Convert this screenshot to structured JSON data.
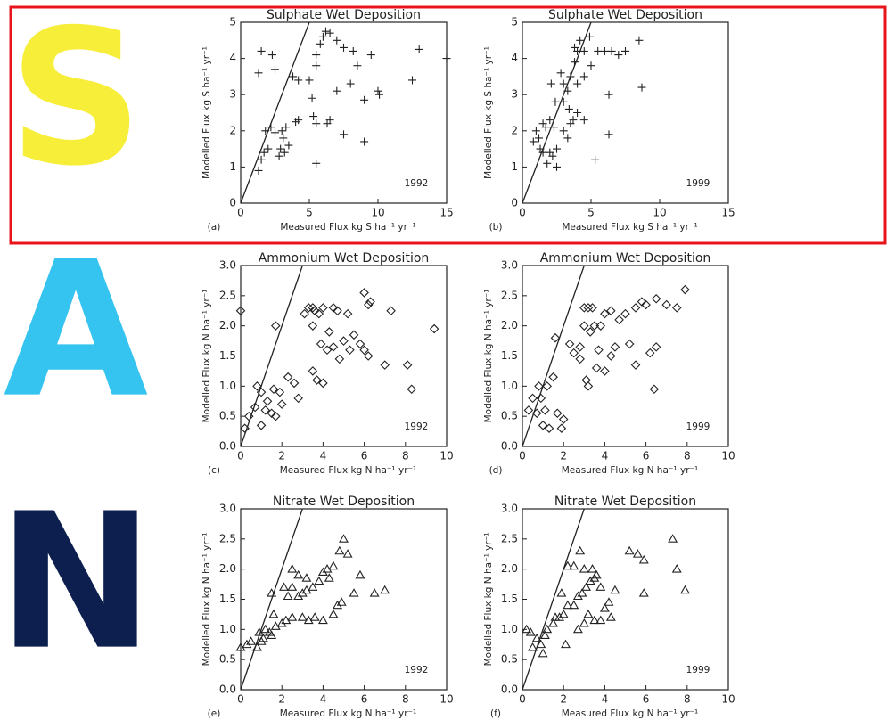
{
  "chart_data": [
    {
      "type": "scatter",
      "title": "Sulphate Wet Deposition",
      "x_label": "Measured Flux kg S ha⁻¹ yr⁻¹",
      "y_label": "Modelled Flux kg S ha⁻¹ yr⁻¹",
      "panel_label": "(a)",
      "annotation": "1992",
      "xlim": [
        0,
        15
      ],
      "ylim": [
        0,
        5
      ],
      "xticks": [
        0,
        5,
        10,
        15
      ],
      "yticks": [
        0,
        1,
        2,
        3,
        4,
        5
      ],
      "series": [
        {
          "name": "1992",
          "marker": "plus",
          "color": "#222222",
          "x": [
            1.5,
            2.3,
            2.5,
            1.3,
            3.8,
            4.2,
            5,
            5.2,
            5.5,
            5.5,
            5.8,
            6,
            6.2,
            6.5,
            7,
            7.5,
            8.2,
            8.5,
            9.5,
            8,
            7,
            10,
            10.1,
            12.5,
            13,
            15,
            9,
            9,
            7.5,
            6.5,
            6.3,
            5.5,
            5.3,
            4.2,
            4,
            3.3,
            3,
            2.5,
            2.2,
            1.8,
            2,
            1.7,
            1.5,
            1.3,
            2.8,
            3.2,
            3.5,
            5.5,
            3.1,
            2.9
          ],
          "values": [
            4.2,
            4.1,
            3.7,
            3.6,
            3.5,
            3.4,
            3.4,
            2.9,
            3.8,
            4.1,
            4.4,
            4.6,
            4.75,
            4.7,
            4.5,
            4.3,
            4.2,
            3.8,
            4.1,
            3.3,
            3.1,
            3.1,
            3.0,
            3.4,
            4.25,
            4.0,
            2.85,
            1.7,
            1.9,
            2.3,
            2.2,
            2.2,
            2.4,
            2.3,
            2.25,
            2.1,
            2.0,
            1.95,
            2.1,
            2.0,
            1.5,
            1.4,
            1.2,
            0.9,
            1.3,
            1.4,
            1.6,
            1.1,
            1.8,
            1.5
          ]
        }
      ]
    },
    {
      "type": "scatter",
      "title": "Sulphate Wet Deposition",
      "x_label": "Measured Flux kg S ha⁻¹ yr⁻¹",
      "y_label": "Modelled Flux kg S ha⁻¹ yr⁻¹",
      "panel_label": "(b)",
      "annotation": "1999",
      "xlim": [
        0,
        15
      ],
      "ylim": [
        0,
        5
      ],
      "xticks": [
        0,
        5,
        10,
        15
      ],
      "yticks": [
        0,
        1,
        2,
        3,
        4,
        5
      ],
      "series": [
        {
          "name": "1999",
          "marker": "plus",
          "color": "#222222",
          "x": [
            1,
            1.2,
            0.8,
            1.5,
            2,
            1.7,
            1.3,
            1.5,
            1.8,
            2.2,
            2.5,
            2,
            2.5,
            2.3,
            3,
            3.3,
            3.5,
            3.7,
            3.4,
            4,
            4.5,
            3,
            3.3,
            3.5,
            3.8,
            4,
            4.2,
            4.5,
            3.8,
            4,
            4.5,
            5,
            5.5,
            6,
            6.5,
            7,
            7.5,
            8.5,
            8.7,
            6.3,
            6.3,
            5.3,
            4.9,
            2.1,
            2.8,
            2.4,
            3.0
          ],
          "values": [
            2.0,
            1.8,
            1.7,
            2.2,
            2.3,
            2.1,
            1.5,
            1.4,
            1.1,
            1.3,
            1.0,
            1.4,
            1.5,
            2.1,
            2.0,
            1.8,
            2.2,
            2.3,
            2.6,
            2.5,
            2.3,
            2.8,
            3.1,
            3.5,
            3.9,
            4.2,
            4.5,
            4.2,
            4.3,
            3.3,
            3.5,
            3.8,
            4.2,
            4.2,
            4.2,
            4.1,
            4.2,
            4.5,
            3.2,
            3.0,
            1.9,
            1.2,
            4.6,
            3.3,
            3.6,
            2.8,
            3.3
          ]
        }
      ]
    },
    {
      "type": "scatter",
      "title": "Ammonium Wet Deposition",
      "x_label": "Measured Flux kg N ha⁻¹ yr⁻¹",
      "y_label": "Modelled Flux kg N ha⁻¹ yr⁻¹",
      "panel_label": "(c)",
      "annotation": "1992",
      "xlim": [
        0,
        10
      ],
      "ylim": [
        0,
        3
      ],
      "xticks": [
        0,
        2,
        4,
        6,
        8,
        10
      ],
      "yticks": [
        {
          "value": 0,
          "label": "0.0"
        },
        0.5,
        {
          "value": 1,
          "label": "1.0"
        },
        1.5,
        {
          "value": 2,
          "label": "2.0"
        },
        2.5,
        {
          "value": 3,
          "label": "3.0"
        }
      ],
      "series": [
        {
          "name": "1992",
          "marker": "diamond",
          "color": "#222222",
          "x": [
            0,
            0.2,
            0.4,
            0.7,
            0.8,
            1,
            1.2,
            1,
            1.3,
            1.5,
            1.7,
            1.6,
            1.9,
            2,
            2.3,
            2.6,
            2.8,
            3.1,
            3.3,
            3.5,
            3.6,
            3.5,
            3.8,
            4,
            4.3,
            4.5,
            4.7,
            5.2,
            6,
            6.2,
            6.3,
            7.3,
            9.4,
            3.5,
            3.7,
            4,
            4.2,
            4.5,
            5,
            5.5,
            5.8,
            6,
            6.2,
            7,
            8.1,
            8.3,
            1.7,
            4.8,
            3.9,
            5.3
          ],
          "values": [
            2.25,
            0.3,
            0.5,
            0.65,
            1.0,
            0.35,
            0.6,
            0.9,
            0.75,
            0.55,
            0.5,
            0.95,
            0.9,
            0.7,
            1.15,
            1.05,
            0.8,
            2.2,
            2.3,
            2.3,
            2.25,
            2.0,
            2.2,
            2.3,
            1.9,
            2.3,
            2.25,
            2.2,
            2.55,
            2.35,
            2.4,
            2.25,
            1.95,
            1.25,
            1.1,
            1.05,
            1.6,
            1.65,
            1.75,
            1.85,
            1.7,
            1.6,
            1.5,
            1.35,
            1.35,
            0.95,
            2.0,
            1.45,
            1.7,
            1.6
          ]
        }
      ]
    },
    {
      "type": "scatter",
      "title": "Ammonium Wet Deposition",
      "x_label": "Measured Flux kg N ha⁻¹ yr⁻¹",
      "y_label": "Modelled Flux kg N ha⁻¹ yr⁻¹",
      "panel_label": "(d)",
      "annotation": "1999",
      "xlim": [
        0,
        10
      ],
      "ylim": [
        0,
        3
      ],
      "xticks": [
        0,
        2,
        4,
        6,
        8,
        10
      ],
      "yticks": [
        {
          "value": 0,
          "label": "0.0"
        },
        0.5,
        {
          "value": 1,
          "label": "1.0"
        },
        1.5,
        {
          "value": 2,
          "label": "2.0"
        },
        2.5,
        {
          "value": 3,
          "label": "3.0"
        }
      ],
      "series": [
        {
          "name": "1999",
          "marker": "diamond",
          "color": "#222222",
          "x": [
            0.3,
            0.5,
            0.7,
            0.9,
            1,
            1.3,
            1.1,
            0.8,
            1.5,
            1.2,
            1.6,
            1.7,
            2,
            1.9,
            2.3,
            2.5,
            2.8,
            3,
            3.2,
            3.4,
            3,
            3.3,
            3.5,
            3.8,
            4,
            4.3,
            4.7,
            5,
            5.5,
            5.8,
            6,
            6.5,
            7,
            7.5,
            7.9,
            3.1,
            3.2,
            3.6,
            4.0,
            4.3,
            4.5,
            5.2,
            5.5,
            6.2,
            6.5,
            6.4,
            2.8,
            3.7
          ],
          "values": [
            0.6,
            0.8,
            0.55,
            0.8,
            0.35,
            0.3,
            0.6,
            1.0,
            1.15,
            1.0,
            1.8,
            0.55,
            0.45,
            0.3,
            1.7,
            1.55,
            1.65,
            2.3,
            2.3,
            2.3,
            2.0,
            1.9,
            2.0,
            2.0,
            2.2,
            2.25,
            2.1,
            2.2,
            2.3,
            2.4,
            2.35,
            2.45,
            2.35,
            2.3,
            2.6,
            1.1,
            1.0,
            1.3,
            1.25,
            1.5,
            1.65,
            1.7,
            1.35,
            1.55,
            1.65,
            0.95,
            1.45,
            1.6
          ]
        }
      ]
    },
    {
      "type": "scatter",
      "title": "Nitrate Wet Deposition",
      "x_label": "Measured Flux kg N ha⁻¹ yr⁻¹",
      "y_label": "Modelled Flux kg N ha⁻¹ yr⁻¹",
      "panel_label": "(e)",
      "annotation": "1992",
      "xlim": [
        0,
        10
      ],
      "ylim": [
        0,
        3
      ],
      "xticks": [
        0,
        2,
        4,
        6,
        8,
        10
      ],
      "yticks": [
        {
          "value": 0,
          "label": "0.0"
        },
        0.5,
        {
          "value": 1,
          "label": "1.0"
        },
        1.5,
        {
          "value": 2,
          "label": "2.0"
        },
        2.5,
        {
          "value": 3,
          "label": "3.0"
        }
      ],
      "series": [
        {
          "name": "1992",
          "marker": "triangle",
          "color": "#222222",
          "x": [
            0,
            0.3,
            0.5,
            0.8,
            0.9,
            1.1,
            1,
            1.2,
            1.4,
            1.5,
            1.6,
            1.7,
            2,
            2.2,
            2.5,
            1.5,
            2.1,
            2.3,
            2.5,
            2.8,
            3,
            3.2,
            3.5,
            3.8,
            4,
            4.2,
            4.5,
            4.3,
            2.5,
            2.8,
            3,
            3.3,
            3.6,
            4,
            4.5,
            4.8,
            5,
            5.2,
            4.7,
            5.5,
            5.8,
            6.5,
            7,
            4.9,
            3.2
          ],
          "values": [
            0.7,
            0.75,
            0.8,
            0.7,
            0.95,
            0.85,
            0.8,
            1.0,
            0.95,
            0.9,
            1.25,
            1.05,
            1.1,
            1.15,
            1.2,
            1.6,
            1.7,
            1.55,
            1.7,
            1.55,
            1.6,
            1.65,
            1.7,
            1.8,
            1.95,
            2.0,
            2.05,
            1.85,
            2.0,
            1.9,
            1.2,
            1.15,
            1.2,
            1.15,
            1.25,
            2.3,
            2.5,
            2.25,
            1.4,
            1.6,
            1.9,
            1.6,
            1.65,
            1.45,
            1.85
          ]
        }
      ]
    },
    {
      "type": "scatter",
      "title": "Nitrate Wet Deposition",
      "x_label": "Measured Flux kg N ha⁻¹ yr⁻¹",
      "y_label": "Modelled Flux kg N ha⁻¹ yr⁻¹",
      "panel_label": "(f)",
      "annotation": "1999",
      "xlim": [
        0,
        10
      ],
      "ylim": [
        0,
        3
      ],
      "xticks": [
        0,
        2,
        4,
        6,
        8,
        10
      ],
      "yticks": [
        {
          "value": 0,
          "label": "0.0"
        },
        0.5,
        {
          "value": 1,
          "label": "1.0"
        },
        1.5,
        {
          "value": 2,
          "label": "2.0"
        },
        2.5,
        {
          "value": 3,
          "label": "3.0"
        }
      ],
      "series": [
        {
          "name": "1999",
          "marker": "triangle",
          "color": "#222222",
          "x": [
            0.2,
            0.4,
            0.5,
            0.7,
            0.9,
            1,
            1.1,
            1.2,
            1.5,
            1.6,
            1.8,
            2,
            2.1,
            2.2,
            2.5,
            2.7,
            2.9,
            3.1,
            3.3,
            3.5,
            2.2,
            2.5,
            2.8,
            3.0,
            3.4,
            3.6,
            3.2,
            3.5,
            3.8,
            4.0,
            4.2,
            3.0,
            4.5,
            5.2,
            5.6,
            5.9,
            5.9,
            7.3,
            7.5,
            7.9,
            1.9,
            2.7,
            3.8,
            4.3
          ],
          "values": [
            1.0,
            0.95,
            0.7,
            0.85,
            0.75,
            0.6,
            0.9,
            1.0,
            1.1,
            1.2,
            1.2,
            1.25,
            0.75,
            1.4,
            1.4,
            1.55,
            1.6,
            1.7,
            1.8,
            1.85,
            2.05,
            2.05,
            2.3,
            2.0,
            2.0,
            1.9,
            1.25,
            1.15,
            1.15,
            1.35,
            1.45,
            1.1,
            1.65,
            2.3,
            2.25,
            2.15,
            1.6,
            2.5,
            2.0,
            1.65,
            1.6,
            1.0,
            1.7,
            1.2
          ]
        }
      ]
    }
  ],
  "side_letters": [
    {
      "text": "S",
      "color": "#f7ee3a"
    },
    {
      "text": "A",
      "color": "#35c4f0"
    },
    {
      "text": "N",
      "color": "#0c1f4f"
    }
  ]
}
